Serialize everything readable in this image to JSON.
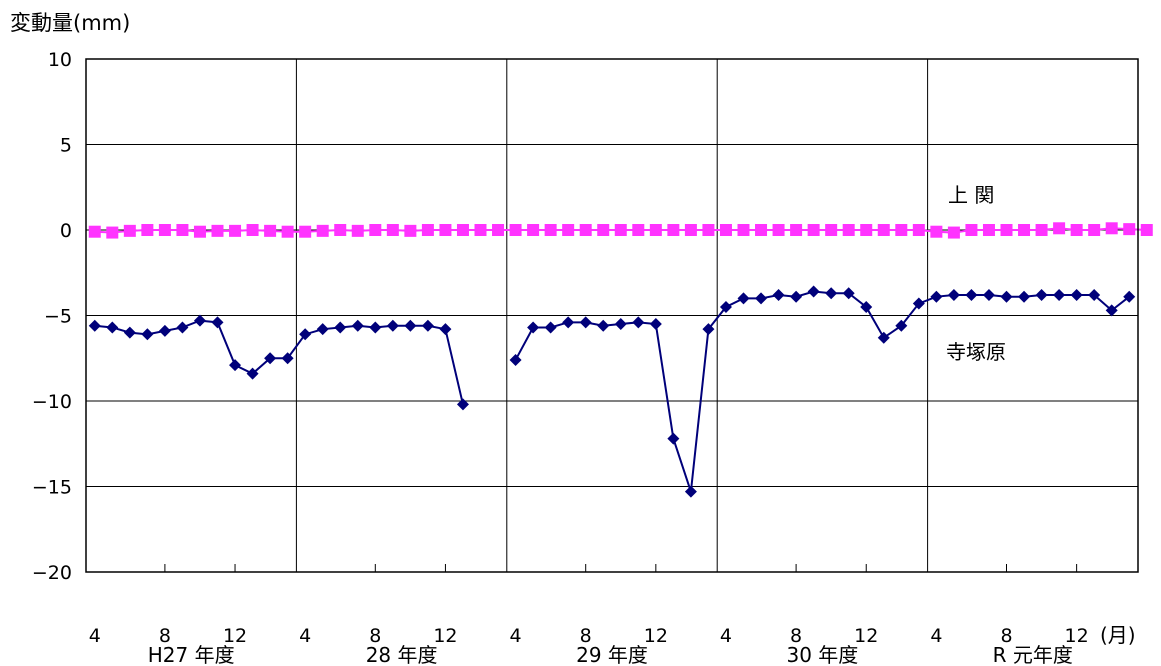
{
  "chart_data": {
    "type": "line",
    "ylabel": "変動量(mm)",
    "ylim": [
      -20,
      10
    ],
    "yticks": [
      10,
      5,
      0,
      -5,
      -10,
      -15,
      -20
    ],
    "xlim": [
      0,
      60
    ],
    "month_ticks": [
      "4",
      "8",
      "12",
      "4",
      "8",
      "12",
      "4",
      "8",
      "12",
      "4",
      "8",
      "12",
      "4",
      "8",
      "12"
    ],
    "month_unit": "(月)",
    "year_labels": [
      "H27 年度",
      "28 年度",
      "29 年度",
      "30 年度",
      "R 元年度"
    ],
    "grid": true,
    "series": [
      {
        "name": "上 関",
        "color": "#ff33ff",
        "marker": "square",
        "values": [
          -0.1,
          -0.15,
          -0.05,
          0,
          0,
          0,
          -0.1,
          -0.05,
          -0.05,
          0,
          -0.05,
          -0.1,
          -0.1,
          -0.05,
          0,
          -0.05,
          0,
          0,
          -0.05,
          0,
          0,
          0,
          0,
          0,
          0,
          0,
          0,
          0,
          0,
          0,
          0,
          0,
          0,
          0,
          0,
          0,
          0,
          0,
          0,
          0,
          0,
          0,
          0,
          0,
          0,
          0,
          0,
          0,
          -0.1,
          -0.15,
          0,
          0,
          0,
          0,
          0,
          0.1,
          0,
          0,
          0.1,
          0.05,
          0
        ]
      },
      {
        "name": "寺塚原",
        "color": "#00007a",
        "marker": "diamond",
        "values": [
          -5.6,
          -5.7,
          -6.0,
          -6.1,
          -5.9,
          -5.7,
          -5.3,
          -5.4,
          -7.9,
          -8.4,
          -7.5,
          -7.5,
          -6.1,
          -5.8,
          -5.7,
          -5.6,
          -5.7,
          -5.6,
          -5.6,
          -5.6,
          -5.8,
          -10.2,
          null,
          null,
          -7.6,
          -5.7,
          -5.7,
          -5.4,
          -5.4,
          -5.6,
          -5.5,
          -5.4,
          -5.5,
          -12.2,
          -15.3,
          -5.8,
          -4.5,
          -4.0,
          -4.0,
          -3.8,
          -3.9,
          -3.6,
          -3.7,
          -3.7,
          -4.5,
          -6.3,
          -5.6,
          -4.3,
          -3.9,
          -3.8,
          -3.8,
          -3.8,
          -3.9,
          -3.9,
          -3.8,
          -3.8,
          -3.8,
          -3.8,
          -4.7,
          -3.9
        ]
      }
    ],
    "annotations": [
      {
        "text": "上 関",
        "series": 0
      },
      {
        "text": "寺塚原",
        "series": 1
      }
    ]
  }
}
